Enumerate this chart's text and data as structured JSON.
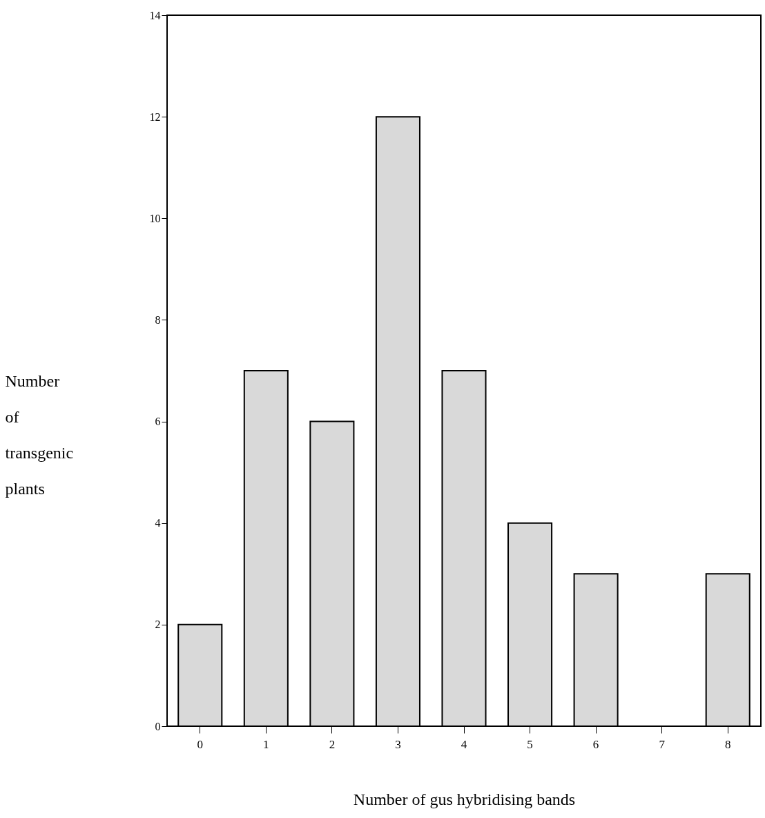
{
  "chart_data": {
    "type": "bar",
    "xlabel": "Number of gus hybridising bands",
    "ylabel": "Number of transgenic plants",
    "categories": [
      "0",
      "1",
      "2",
      "3",
      "4",
      "5",
      "6",
      "7",
      "8"
    ],
    "values": [
      2,
      7,
      6,
      12,
      7,
      4,
      3,
      0,
      3
    ],
    "color": "#d9d9d9",
    "ylim": [
      0,
      14
    ],
    "yticks": [
      0,
      2,
      4,
      6,
      8,
      10,
      12,
      14
    ],
    "grid": false
  }
}
